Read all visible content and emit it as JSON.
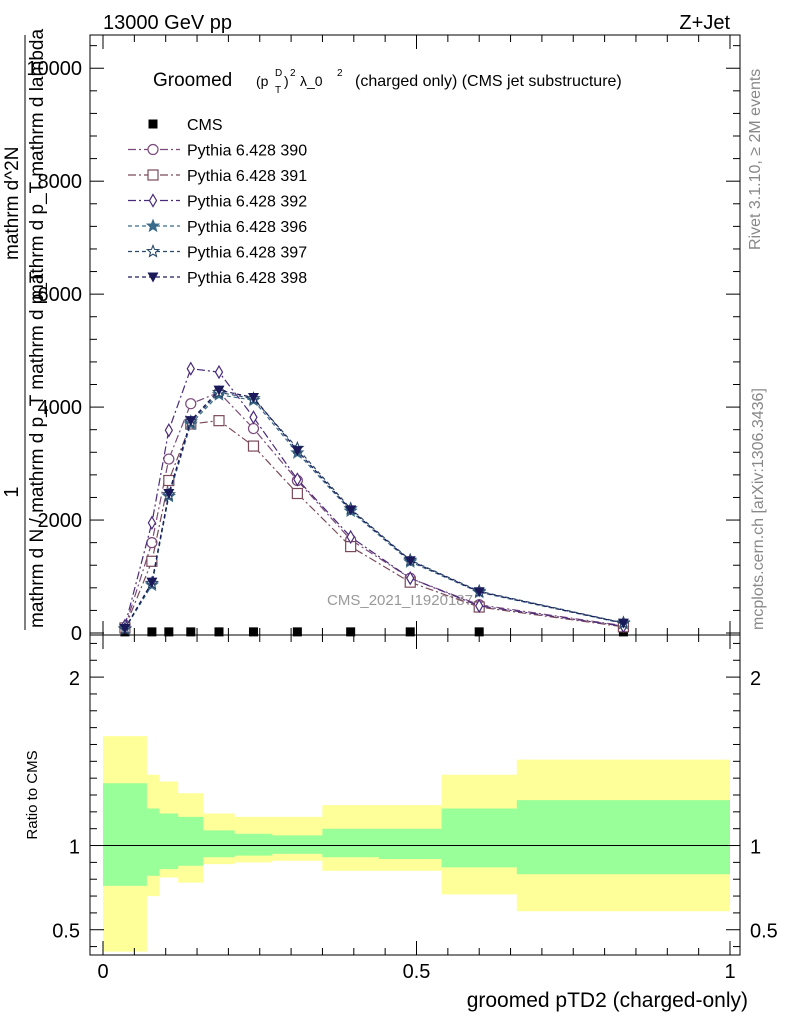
{
  "header": {
    "left": "13000 GeV pp",
    "right": "Z+Jet"
  },
  "side_text": {
    "rivet": "Rivet 3.1.10, ≥ 2M events",
    "mcplots": "mcplots.cern.ch [arXiv:1306.3436]"
  },
  "watermark": "CMS_2021_I1920187",
  "chart_data": [
    {
      "type": "line",
      "title_parts": {
        "lead": "Groomed",
        "sym_p": "(p",
        "sym_sub": "T",
        "sym_sup": "D",
        "sym_close": ")",
        "sym_pow": "2",
        "sym_lambda": "λ_0",
        "sym_lpow": "2",
        "rest": "(charged only) (CMS jet substructure)"
      },
      "ylabel": {
        "numerator": "1",
        "denominator": "mathrm d N / mathrm d p_T mathrm d p_T",
        "upper": "mathrm d^2N",
        "upper2": "mathrm d p_T mathrm d lambda"
      },
      "ylim": [
        0,
        10500
      ],
      "xlim": [
        0,
        1
      ],
      "yticks": [
        0,
        2000,
        4000,
        6000,
        8000,
        10000
      ],
      "ytick_labels": [
        "0",
        "2000",
        "4000",
        "6000",
        "8000",
        "10000"
      ],
      "x": [
        0.035,
        0.078,
        0.105,
        0.14,
        0.185,
        0.24,
        0.31,
        0.395,
        0.49,
        0.6,
        0.83
      ],
      "series": [
        {
          "name": "CMS",
          "color": "#000000",
          "marker": "square-filled",
          "dash": "",
          "values": [
            20,
            20,
            20,
            20,
            20,
            20,
            20,
            20,
            20,
            20,
            20
          ]
        },
        {
          "name": "Pythia 6.428 390",
          "color": "#7a4a7a",
          "marker": "circle-open",
          "dash": "8,3,2,3",
          "values": [
            100,
            1600,
            3080,
            4060,
            4260,
            3620,
            2700,
            1650,
            970,
            500,
            130
          ]
        },
        {
          "name": "Pythia 6.428 391",
          "color": "#7a4a5a",
          "marker": "square-open",
          "dash": "8,3,2,3",
          "values": [
            90,
            1270,
            2700,
            3700,
            3760,
            3310,
            2470,
            1530,
            900,
            460,
            110
          ]
        },
        {
          "name": "Pythia 6.428 392",
          "color": "#4a2a7a",
          "marker": "diamond-open",
          "dash": "8,3,2,3",
          "values": [
            130,
            1950,
            3590,
            4680,
            4620,
            3820,
            2720,
            1700,
            970,
            480,
            120
          ]
        },
        {
          "name": "Pythia 6.428 396",
          "color": "#3a6a8a",
          "marker": "star-filled",
          "dash": "4,3",
          "values": [
            70,
            850,
            2420,
            3700,
            4220,
            4120,
            3190,
            2160,
            1260,
            720,
            170
          ]
        },
        {
          "name": "Pythia 6.428 397",
          "color": "#2a4a6a",
          "marker": "star-open",
          "dash": "4,3",
          "values": [
            75,
            880,
            2450,
            3740,
            4260,
            4150,
            3270,
            2200,
            1290,
            740,
            180
          ]
        },
        {
          "name": "Pythia 6.428 398",
          "color": "#1a1a5a",
          "marker": "triangle-down-filled",
          "dash": "4,3",
          "values": [
            80,
            900,
            2470,
            3760,
            4300,
            4170,
            3230,
            2180,
            1280,
            730,
            175
          ]
        }
      ]
    },
    {
      "type": "area",
      "ylabel": "Ratio to CMS",
      "xlabel": "groomed pTD2 (charged-only)",
      "ylim": [
        0.35,
        2.25
      ],
      "xlim": [
        0,
        1
      ],
      "yticks": [
        0.5,
        1,
        2
      ],
      "ytick_labels": [
        "0.5",
        "1",
        "2"
      ],
      "xticks": [
        0,
        0.5,
        1
      ],
      "xtick_labels": [
        "0",
        "0.5",
        "1"
      ],
      "bin_edges": [
        0,
        0.07,
        0.09,
        0.12,
        0.16,
        0.21,
        0.27,
        0.35,
        0.44,
        0.54,
        0.66,
        1.0
      ],
      "band_green_low": [
        0.76,
        0.82,
        0.86,
        0.88,
        0.93,
        0.94,
        0.95,
        0.93,
        0.92,
        0.87,
        0.83
      ],
      "band_green_high": [
        1.37,
        1.22,
        1.19,
        1.17,
        1.09,
        1.07,
        1.06,
        1.1,
        1.1,
        1.22,
        1.27
      ],
      "band_yellow_low": [
        0.37,
        0.7,
        0.81,
        0.78,
        0.89,
        0.9,
        0.91,
        0.85,
        0.85,
        0.71,
        0.61
      ],
      "band_yellow_high": [
        1.65,
        1.42,
        1.38,
        1.31,
        1.19,
        1.17,
        1.17,
        1.24,
        1.24,
        1.42,
        1.51
      ],
      "colors": {
        "green": "#99ff99",
        "yellow": "#ffff99"
      }
    }
  ]
}
